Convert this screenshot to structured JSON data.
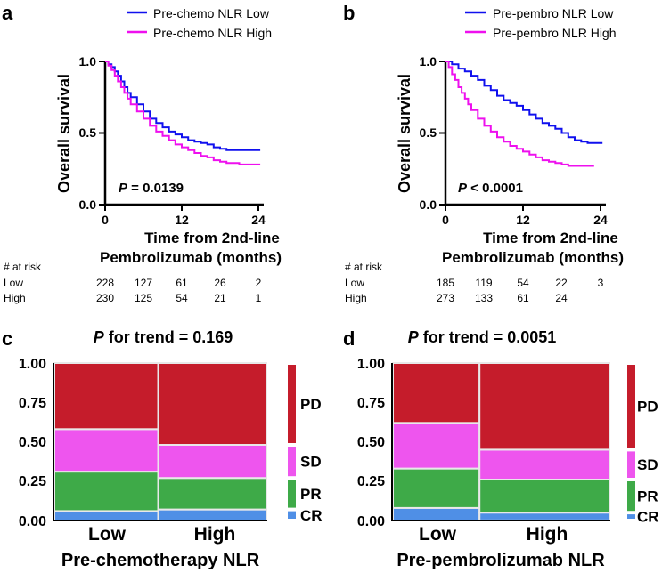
{
  "colors": {
    "low": "#1010ee",
    "high": "#ee10ee",
    "PD": "#c51c2b",
    "SD": "#ee55ee",
    "PR": "#3eaa48",
    "CR": "#4f8fe6"
  },
  "chart_data": [
    {
      "panel": "a",
      "type": "line",
      "legend": [
        "Pre-chemo NLR Low",
        "Pre-chemo NLR High"
      ],
      "ylabel": "Overall survival",
      "xlabel": "Time from 2nd-line",
      "xlabel2": "Pembrolizumab (months)",
      "xticks": [
        "0",
        "12",
        "24"
      ],
      "yticks": [
        "0.0",
        "0.5",
        "1.0"
      ],
      "xlim": [
        0,
        24
      ],
      "ylim": [
        0,
        1
      ],
      "p_prefix": "P",
      "p_text": " = 0.0139",
      "series": [
        {
          "name": "Pre-chemo NLR Low",
          "x": [
            0,
            0.5,
            1,
            1.5,
            2,
            2.5,
            3,
            3.5,
            4,
            5,
            6,
            7,
            8,
            9,
            10,
            11,
            12,
            13,
            14,
            15,
            16,
            17,
            18,
            19,
            20,
            21,
            22,
            23,
            24.3
          ],
          "y": [
            1.0,
            0.98,
            0.96,
            0.93,
            0.9,
            0.86,
            0.82,
            0.78,
            0.75,
            0.7,
            0.65,
            0.6,
            0.57,
            0.54,
            0.51,
            0.49,
            0.47,
            0.45,
            0.44,
            0.43,
            0.42,
            0.4,
            0.39,
            0.38,
            0.38,
            0.38,
            0.38,
            0.38,
            0.38
          ]
        },
        {
          "name": "Pre-chemo NLR High",
          "x": [
            0,
            0.5,
            1,
            1.5,
            2,
            2.5,
            3,
            3.5,
            4,
            5,
            6,
            7,
            8,
            9,
            10,
            11,
            12,
            13,
            14,
            15,
            16,
            17,
            18,
            19,
            20,
            21,
            22,
            23,
            24.3
          ],
          "y": [
            1.0,
            0.97,
            0.94,
            0.9,
            0.86,
            0.82,
            0.78,
            0.74,
            0.7,
            0.65,
            0.6,
            0.55,
            0.51,
            0.48,
            0.45,
            0.42,
            0.4,
            0.38,
            0.36,
            0.34,
            0.33,
            0.31,
            0.3,
            0.29,
            0.29,
            0.28,
            0.28,
            0.28,
            0.28
          ]
        }
      ],
      "risk": {
        "title": "# at risk",
        "rows": [
          {
            "label": "Low",
            "values": [
              "228",
              "127",
              "61",
              "26",
              "2"
            ]
          },
          {
            "label": "High",
            "values": [
              "230",
              "125",
              "54",
              "21",
              "1"
            ]
          }
        ]
      }
    },
    {
      "panel": "b",
      "type": "line",
      "legend": [
        "Pre-pembro NLR Low",
        "Pre-pembro NLR High"
      ],
      "ylabel": "Overall survival",
      "xlabel": "Time from 2nd-line",
      "xlabel2": "Pembrolizumab (months)",
      "xticks": [
        "0",
        "12",
        "24"
      ],
      "yticks": [
        "0.0",
        "0.5",
        "1.0"
      ],
      "xlim": [
        0,
        24
      ],
      "ylim": [
        0,
        1
      ],
      "p_prefix": "P",
      "p_text": " < 0.0001",
      "series": [
        {
          "name": "Pre-pembro NLR Low",
          "x": [
            0,
            1,
            2,
            3,
            4,
            5,
            6,
            7,
            8,
            9,
            10,
            11,
            12,
            13,
            14,
            15,
            16,
            17,
            18,
            19,
            20,
            21,
            22,
            23,
            24.3
          ],
          "y": [
            1.0,
            0.98,
            0.95,
            0.93,
            0.9,
            0.87,
            0.83,
            0.8,
            0.76,
            0.73,
            0.71,
            0.69,
            0.66,
            0.63,
            0.6,
            0.57,
            0.55,
            0.53,
            0.5,
            0.47,
            0.45,
            0.44,
            0.43,
            0.43,
            0.43
          ]
        },
        {
          "name": "Pre-pembro NLR High",
          "x": [
            0,
            0.5,
            1,
            1.5,
            2,
            2.5,
            3,
            3.5,
            4,
            5,
            6,
            7,
            8,
            9,
            10,
            11,
            12,
            13,
            14,
            15,
            16,
            17,
            18,
            19,
            20,
            21,
            22,
            23
          ],
          "y": [
            1.0,
            0.96,
            0.91,
            0.87,
            0.82,
            0.78,
            0.74,
            0.7,
            0.66,
            0.6,
            0.55,
            0.51,
            0.47,
            0.44,
            0.41,
            0.39,
            0.37,
            0.35,
            0.33,
            0.31,
            0.3,
            0.29,
            0.28,
            0.27,
            0.27,
            0.27,
            0.27,
            0.27
          ]
        }
      ],
      "risk": {
        "title": "# at risk",
        "rows": [
          {
            "label": "Low",
            "values": [
              "185",
              "119",
              "54",
              "22",
              "3"
            ]
          },
          {
            "label": "High",
            "values": [
              "273",
              "133",
              "61",
              "24",
              ""
            ]
          }
        ]
      }
    },
    {
      "panel": "c",
      "type": "bar",
      "stacked": true,
      "title_prefix": "P",
      "title_text": " for trend = 0.169",
      "categories": [
        "Low",
        "High"
      ],
      "widths": [
        0.49,
        0.51
      ],
      "xlabel": "Pre-chemotherapy NLR",
      "yticks": [
        "0.00",
        "0.25",
        "0.50",
        "0.75",
        "1.00"
      ],
      "ylim": [
        0,
        1
      ],
      "series": [
        {
          "name": "CR",
          "values": [
            0.06,
            0.07
          ]
        },
        {
          "name": "PR",
          "values": [
            0.25,
            0.2
          ]
        },
        {
          "name": "SD",
          "values": [
            0.27,
            0.21
          ]
        },
        {
          "name": "PD",
          "values": [
            0.42,
            0.52
          ]
        }
      ],
      "legend": [
        "PD",
        "SD",
        "PR",
        "CR"
      ]
    },
    {
      "panel": "d",
      "type": "bar",
      "stacked": true,
      "title_prefix": "P",
      "title_text": " for trend = 0.0051",
      "categories": [
        "Low",
        "High"
      ],
      "widths": [
        0.4,
        0.6
      ],
      "xlabel": "Pre-pembrolizumab NLR",
      "yticks": [
        "0.00",
        "0.25",
        "0.50",
        "0.75",
        "1.00"
      ],
      "ylim": [
        0,
        1
      ],
      "series": [
        {
          "name": "CR",
          "values": [
            0.08,
            0.05
          ]
        },
        {
          "name": "PR",
          "values": [
            0.25,
            0.21
          ]
        },
        {
          "name": "SD",
          "values": [
            0.29,
            0.19
          ]
        },
        {
          "name": "PD",
          "values": [
            0.38,
            0.55
          ]
        }
      ],
      "legend": [
        "PD",
        "SD",
        "PR",
        "CR"
      ]
    }
  ]
}
